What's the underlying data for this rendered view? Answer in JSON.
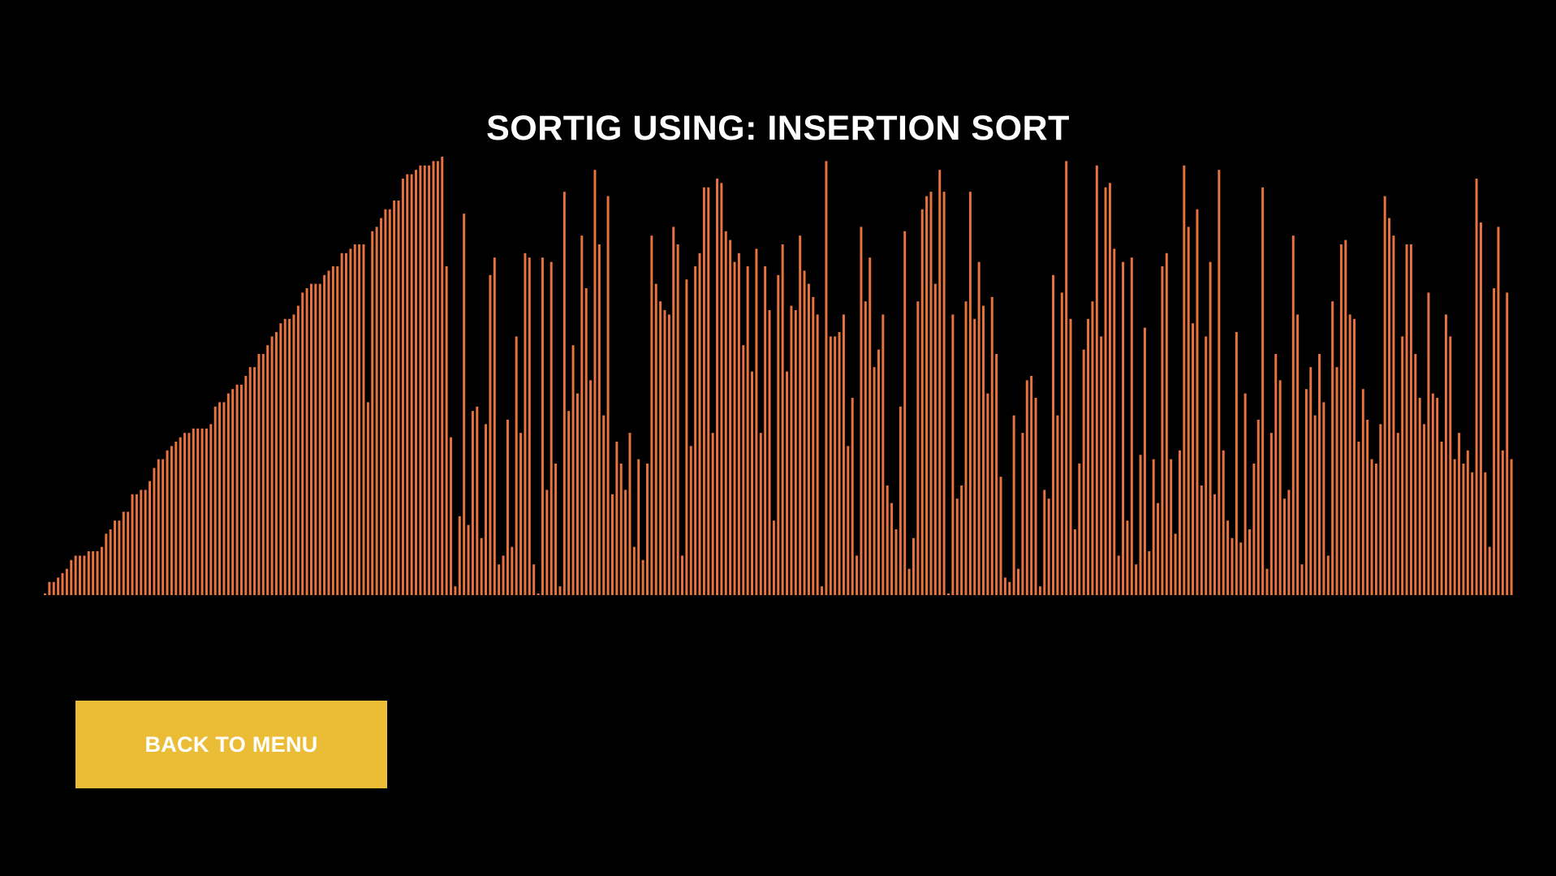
{
  "title": "SORTIG USING: INSERTION SORT",
  "back_button": {
    "label": "BACK TO MENU",
    "color": "#ebbd36"
  },
  "colors": {
    "background": "#000000",
    "bar": "#e8733f",
    "title": "#ffffff"
  },
  "chart_data": {
    "type": "bar",
    "ylim": [
      0,
      1
    ],
    "values": [
      0.0,
      0.03,
      0.03,
      0.04,
      0.05,
      0.06,
      0.08,
      0.09,
      0.09,
      0.09,
      0.1,
      0.1,
      0.1,
      0.11,
      0.14,
      0.15,
      0.17,
      0.17,
      0.19,
      0.19,
      0.23,
      0.23,
      0.24,
      0.24,
      0.26,
      0.29,
      0.31,
      0.31,
      0.33,
      0.34,
      0.35,
      0.36,
      0.37,
      0.37,
      0.38,
      0.38,
      0.38,
      0.38,
      0.39,
      0.43,
      0.44,
      0.44,
      0.46,
      0.47,
      0.48,
      0.48,
      0.5,
      0.52,
      0.52,
      0.55,
      0.55,
      0.57,
      0.59,
      0.6,
      0.62,
      0.63,
      0.63,
      0.64,
      0.66,
      0.69,
      0.7,
      0.71,
      0.71,
      0.71,
      0.73,
      0.74,
      0.75,
      0.75,
      0.78,
      0.78,
      0.79,
      0.8,
      0.8,
      0.8,
      0.44,
      0.83,
      0.84,
      0.86,
      0.88,
      0.88,
      0.9,
      0.9,
      0.95,
      0.96,
      0.96,
      0.97,
      0.98,
      0.98,
      0.98,
      0.99,
      0.99,
      1.0,
      0.75,
      0.36,
      0.02,
      0.18,
      0.87,
      0.16,
      0.42,
      0.43,
      0.13,
      0.39,
      0.73,
      0.77,
      0.07,
      0.09,
      0.4,
      0.11,
      0.59,
      0.37,
      0.78,
      0.77,
      0.07,
      0.0,
      0.77,
      0.24,
      0.76,
      0.3,
      0.02,
      0.92,
      0.42,
      0.57,
      0.46,
      0.82,
      0.7,
      0.49,
      0.97,
      0.8,
      0.41,
      0.91,
      0.23,
      0.35,
      0.3,
      0.24,
      0.37,
      0.11,
      0.31,
      0.08,
      0.3,
      0.82,
      0.71,
      0.67,
      0.65,
      0.64,
      0.84,
      0.8,
      0.09,
      0.72,
      0.34,
      0.75,
      0.78,
      0.93,
      0.93,
      0.37,
      0.95,
      0.94,
      0.83,
      0.81,
      0.76,
      0.78,
      0.57,
      0.75,
      0.51,
      0.79,
      0.37,
      0.75,
      0.65,
      0.17,
      0.73,
      0.8,
      0.51,
      0.66,
      0.65,
      0.82,
      0.74,
      0.71,
      0.68,
      0.64,
      0.02,
      0.99,
      0.59,
      0.59,
      0.6,
      0.64,
      0.34,
      0.45,
      0.09,
      0.84,
      0.67,
      0.77,
      0.52,
      0.56,
      0.64,
      0.25,
      0.21,
      0.15,
      0.43,
      0.83,
      0.06,
      0.13,
      0.67,
      0.88,
      0.91,
      0.92,
      0.71,
      0.97,
      0.92,
      0.0,
      0.64,
      0.22,
      0.25,
      0.67,
      0.92,
      0.63,
      0.76,
      0.66,
      0.46,
      0.68,
      0.55,
      0.27,
      0.04,
      0.03,
      0.41,
      0.06,
      0.37,
      0.49,
      0.5,
      0.45,
      0.02,
      0.24,
      0.22,
      0.73,
      0.41,
      0.69,
      0.99,
      0.63,
      0.15,
      0.3,
      0.56,
      0.63,
      0.67,
      0.98,
      0.59,
      0.93,
      0.94,
      0.79,
      0.09,
      0.76,
      0.17,
      0.77,
      0.07,
      0.32,
      0.61,
      0.1,
      0.31,
      0.21,
      0.75,
      0.78,
      0.31,
      0.14,
      0.33,
      0.98,
      0.84,
      0.62,
      0.88,
      0.25,
      0.59,
      0.76,
      0.23,
      0.97,
      0.33,
      0.17,
      0.13,
      0.6,
      0.12,
      0.46,
      0.15,
      0.3,
      0.4,
      0.93,
      0.06,
      0.37,
      0.55,
      0.49,
      0.22,
      0.24,
      0.82,
      0.64,
      0.07,
      0.47,
      0.52,
      0.41,
      0.55,
      0.44,
      0.09,
      0.67,
      0.52,
      0.8,
      0.81,
      0.64,
      0.63,
      0.35,
      0.47,
      0.4,
      0.31,
      0.3,
      0.39,
      0.91,
      0.86,
      0.82,
      0.37,
      0.59,
      0.8,
      0.8,
      0.55,
      0.45,
      0.39,
      0.69,
      0.46,
      0.45,
      0.35,
      0.64,
      0.59,
      0.31,
      0.37,
      0.3,
      0.33,
      0.28,
      0.95,
      0.85,
      0.28,
      0.11,
      0.7,
      0.84,
      0.33,
      0.69,
      0.31
    ]
  }
}
